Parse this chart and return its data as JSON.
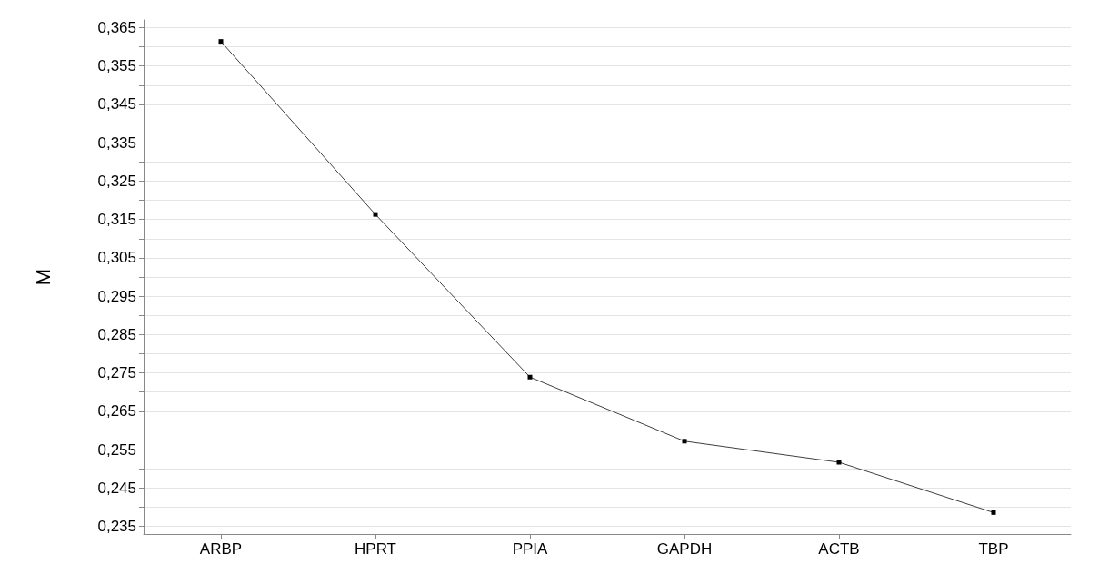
{
  "chart_data": {
    "type": "line",
    "ylabel": "M",
    "categories": [
      "ARBP",
      "HPRT",
      "PPIA",
      "GAPDH",
      "ACTB",
      "TBP"
    ],
    "series": [
      {
        "color": "#404040",
        "values": [
          0.3614,
          0.3163,
          0.2739,
          0.2572,
          0.2517,
          0.2386
        ]
      }
    ],
    "ylim": [
      0.233,
      0.367
    ],
    "yticks": [
      {
        "value": 0.235,
        "label": "0,235"
      },
      {
        "value": 0.24,
        "label": null
      },
      {
        "value": 0.245,
        "label": "0,245"
      },
      {
        "value": 0.25,
        "label": null
      },
      {
        "value": 0.255,
        "label": "0,255"
      },
      {
        "value": 0.26,
        "label": null
      },
      {
        "value": 0.265,
        "label": "0,265"
      },
      {
        "value": 0.27,
        "label": null
      },
      {
        "value": 0.275,
        "label": "0,275"
      },
      {
        "value": 0.28,
        "label": null
      },
      {
        "value": 0.285,
        "label": "0,285"
      },
      {
        "value": 0.29,
        "label": null
      },
      {
        "value": 0.295,
        "label": "0,295"
      },
      {
        "value": 0.3,
        "label": null
      },
      {
        "value": 0.305,
        "label": "0,305"
      },
      {
        "value": 0.31,
        "label": null
      },
      {
        "value": 0.315,
        "label": "0,315"
      },
      {
        "value": 0.32,
        "label": null
      },
      {
        "value": 0.325,
        "label": "0,325"
      },
      {
        "value": 0.33,
        "label": null
      },
      {
        "value": 0.335,
        "label": "0,335"
      },
      {
        "value": 0.34,
        "label": null
      },
      {
        "value": 0.345,
        "label": "0,345"
      },
      {
        "value": 0.35,
        "label": null
      },
      {
        "value": 0.355,
        "label": "0,355"
      },
      {
        "value": 0.36,
        "label": null
      },
      {
        "value": 0.365,
        "label": "0,365"
      }
    ],
    "grid": "y",
    "marker": "square",
    "line_style": "solid"
  }
}
